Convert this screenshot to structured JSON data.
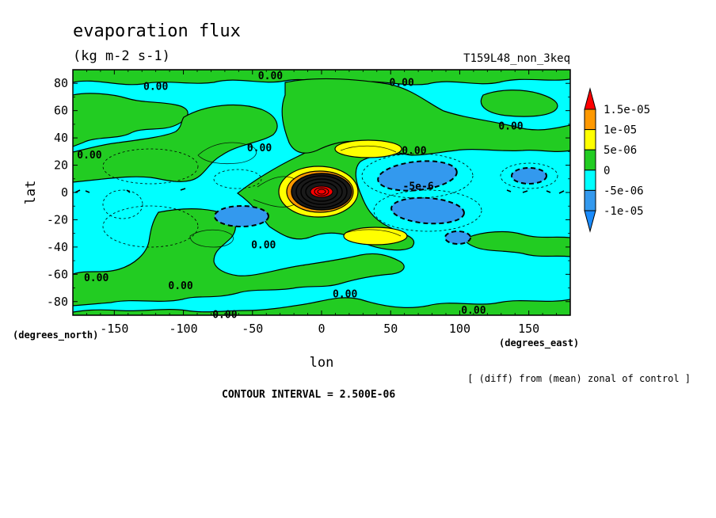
{
  "header": {
    "title": "evaporation flux",
    "units": "(kg m-2 s-1)",
    "run_name": "T159L48_non_3keq"
  },
  "footer": {
    "note": "[ (diff) from (mean) zonal of control ]",
    "contour_interval": "CONTOUR INTERVAL = 2.500E-06"
  },
  "colors": {
    "below_-1e-05": "#1a8cff",
    "-1e-05_to_-5e-06": "#3399ee",
    "-5e-06_to_0": "#00ffff",
    "0_to_5e-06": "#22cc22",
    "5e-06_to_1e-05": "#ffff00",
    "1e-05_to_1.5e-05": "#ff9900",
    "above_1.5e-05": "#ff0000"
  },
  "chart_data": {
    "type": "heatmap",
    "title": "evaporation flux",
    "subtitle": "(kg m-2 s-1)",
    "xlabel": "lon",
    "ylabel": "lat",
    "x_unit_label": "(degrees_east)",
    "y_unit_label": "(degrees_north)",
    "xlim": [
      -180,
      180
    ],
    "ylim": [
      -90,
      90
    ],
    "x_ticks": [
      -150,
      -100,
      -50,
      0,
      50,
      100,
      150
    ],
    "y_ticks": [
      -80,
      -60,
      -40,
      -20,
      0,
      20,
      40,
      60,
      80
    ],
    "colorbar": {
      "levels": [
        -1e-05,
        -5e-06,
        0,
        5e-06,
        1e-05,
        1.5e-05
      ],
      "labels": [
        "-1e-05",
        "-5e-06",
        "0",
        "5e-06",
        "1e-05",
        "1.5e-05"
      ],
      "extend": "both"
    },
    "contour_labels": [
      {
        "text": "0.00",
        "lon": -120,
        "lat": 78
      },
      {
        "text": "0.00",
        "lon": -37,
        "lat": 86
      },
      {
        "text": "0.00",
        "lon": 58,
        "lat": 81
      },
      {
        "text": "0.00",
        "lon": 137,
        "lat": 49
      },
      {
        "text": "0.00",
        "lon": -168,
        "lat": 28
      },
      {
        "text": "0.00",
        "lon": -45,
        "lat": 33
      },
      {
        "text": "0.00",
        "lon": 67,
        "lat": 31
      },
      {
        "text": "-5e-6",
        "lon": 70,
        "lat": 5
      },
      {
        "text": "0.00",
        "lon": -42,
        "lat": -38
      },
      {
        "text": "0.00",
        "lon": -163,
        "lat": -62
      },
      {
        "text": "0.00",
        "lon": -102,
        "lat": -68
      },
      {
        "text": "0.00",
        "lon": 17,
        "lat": -74
      },
      {
        "text": "0.00",
        "lon": -70,
        "lat": -89
      },
      {
        "text": "0.00",
        "lon": 110,
        "lat": -86
      }
    ]
  }
}
